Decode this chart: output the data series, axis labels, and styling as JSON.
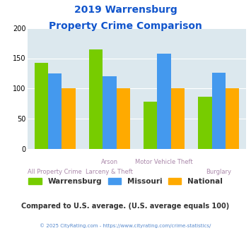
{
  "title_line1": "2019 Warrensburg",
  "title_line2": "Property Crime Comparison",
  "cat_labels_top": [
    "",
    "Arson",
    "Motor Vehicle Theft",
    ""
  ],
  "cat_labels_bot": [
    "All Property Crime",
    "Larceny & Theft",
    "",
    "Burglary"
  ],
  "warrensburg": [
    143,
    165,
    78,
    87
  ],
  "missouri": [
    125,
    120,
    157,
    126
  ],
  "national": [
    100,
    100,
    100,
    100
  ],
  "colors": {
    "warrensburg": "#77cc00",
    "missouri": "#4499ee",
    "national": "#ffaa00"
  },
  "ylim": [
    0,
    200
  ],
  "yticks": [
    0,
    50,
    100,
    150,
    200
  ],
  "bg_color": "#dce8ee",
  "title_color": "#1155cc",
  "label_color": "#aa88aa",
  "subtitle_text": "Compared to U.S. average. (U.S. average equals 100)",
  "subtitle_color": "#333333",
  "footer_text": "© 2025 CityRating.com - https://www.cityrating.com/crime-statistics/",
  "footer_color": "#5588cc",
  "legend_labels": [
    "Warrensburg",
    "Missouri",
    "National"
  ],
  "bar_width": 0.25
}
